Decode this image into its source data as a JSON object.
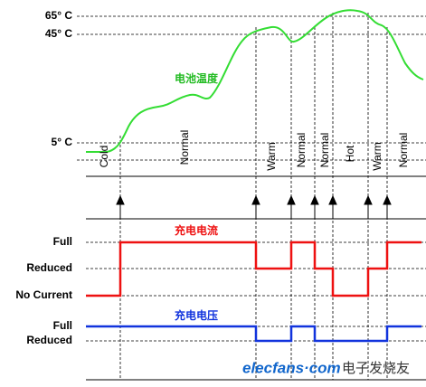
{
  "temperature": {
    "labels": [
      "65° C",
      "45° C",
      "5° C"
    ],
    "curve_title": "电池温度"
  },
  "zones": [
    "Cold",
    "Normal",
    "Warm",
    "Normal",
    "Normal",
    "Hot",
    "Warm",
    "Normal"
  ],
  "current": {
    "labels": [
      "Full",
      "Reduced",
      "No Current"
    ],
    "curve_title": "充电电流"
  },
  "voltage": {
    "labels": [
      "Full",
      "Reduced"
    ],
    "curve_title": "充电电压"
  },
  "watermark": {
    "site": "elecfans·com",
    "name": "电子发烧友"
  }
}
